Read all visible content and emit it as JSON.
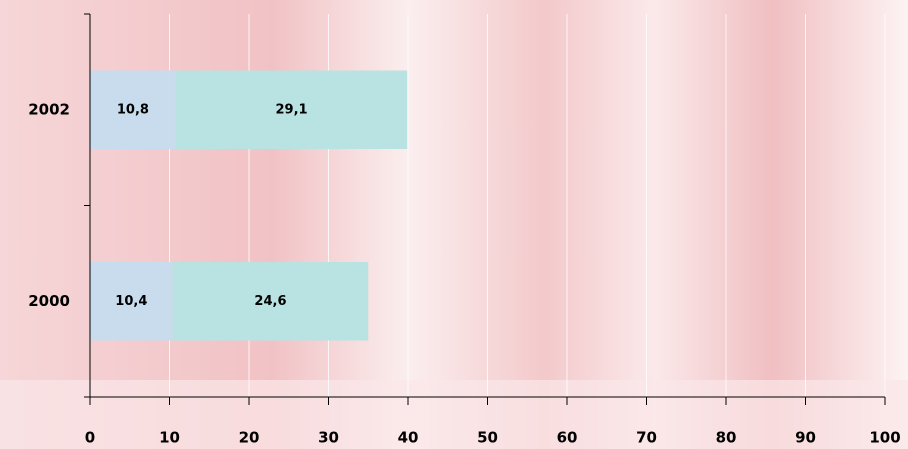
{
  "chart_data": {
    "type": "stacked_barh",
    "categories": [
      "2000",
      "2002"
    ],
    "series": [
      {
        "color": "#c9dced",
        "values": [
          10.4,
          10.8
        ],
        "value_labels": [
          "10,4",
          "10,8"
        ]
      },
      {
        "color": "#b9e2e2",
        "values": [
          24.6,
          29.1
        ],
        "value_labels": [
          "24,6",
          "29,1"
        ]
      }
    ],
    "xlim": [
      0,
      100
    ],
    "xticks": [
      0,
      10,
      20,
      30,
      40,
      50,
      60,
      70,
      80,
      90,
      100
    ],
    "grid": true
  }
}
